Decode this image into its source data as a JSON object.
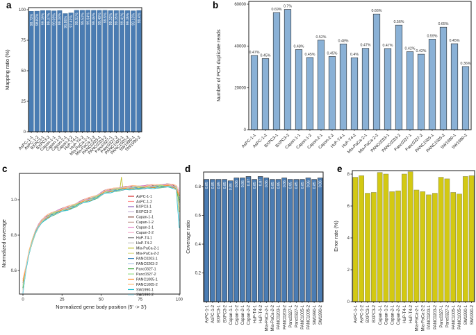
{
  "figure": {
    "background": "#ffffff"
  },
  "samples": [
    "AsPC-1-1",
    "AsPC-1-2",
    "BXPC3-1",
    "BXPC3-2",
    "Capan-1-1",
    "Capan-1-2",
    "Capan-2-1",
    "Capan-2-2",
    "HuP-T4-1",
    "HuP-T4-2",
    "Mia-PaCa-2-1",
    "Mia-PaCa-2-2",
    "PANC0203-1",
    "PANC0203-2",
    "Panc0327-1",
    "Panc0327-2",
    "PANC1005-1",
    "PANC1005-2",
    "SW1990-1",
    "SW1990-2"
  ],
  "colors": {
    "bar_blue": "#4a7cb3",
    "bar_light_blue": "#8ab1d6",
    "bar_yellow": "#d3c912",
    "frame": "#1a1a1a",
    "text": "#1f1f1f",
    "bar_label_white": "#ffffff"
  },
  "chart_data": [
    {
      "panel_label": "a",
      "type": "bar",
      "ylabel": "Mapping ratio (%)",
      "ylim": [
        0,
        100
      ],
      "yticks": [
        0,
        25,
        50,
        75,
        100
      ],
      "categories": [
        "AsPC-1-1",
        "AsPC-1-2",
        "BXPC3-1",
        "BXPC3-2",
        "Capan-1-1",
        "Capan-1-2",
        "Capan-2-1",
        "Capan-2-2",
        "HuP-T4-1",
        "HuP-T4-2",
        "Mia-PaCa-2-1",
        "Mia-PaCa-2-2",
        "PANC0203-1",
        "PANC0203-2",
        "Panc0327-1",
        "Panc0327-2",
        "PANC1005-1",
        "PANC1005-2",
        "SW1990-1",
        "SW1990-2"
      ],
      "values": [
        98.72,
        98.82,
        99.39,
        99.37,
        99.09,
        99.34,
        96.86,
        97.41,
        99.51,
        99.53,
        99.64,
        99.46,
        99.49,
        99.5,
        99.32,
        99.35,
        99.41,
        99.35,
        99.13,
        99.4
      ],
      "bar_labels": [
        "98.72%",
        "98.82%",
        "99.39%",
        "99.37%",
        "99.09%",
        "99.34%",
        "96.86%",
        "97.41%",
        "99.51%",
        "99.53%",
        "99.64%",
        "99.46%",
        "99.49%",
        "99.5%",
        "99.32%",
        "99.35%",
        "99.41%",
        "99.35%",
        "99.13%",
        "99.4%"
      ],
      "bar_color": "#4a7cb3",
      "bar_label_placement": "inside-top-rotated"
    },
    {
      "panel_label": "b",
      "type": "bar",
      "ylabel": "Number of PCR duplicate reads",
      "ylim": [
        0,
        60000
      ],
      "yticks": [
        0,
        20000,
        40000,
        60000
      ],
      "categories": [
        "AsPC-1-1",
        "AsPC-1-2",
        "BXPC3-1",
        "BXPC3-2",
        "Capan-1-1",
        "Capan-1-2",
        "Capan-2-1",
        "Capan-2-2",
        "HuP-T4-1",
        "HuP-T4-2",
        "Mia-PaCa-2-1",
        "Mia-PaCa-2-2",
        "PANC0203-1",
        "PANC0203-2",
        "Panc0327-1",
        "Panc0327-2",
        "PANC1005-1",
        "PANC1005-2",
        "SW1990-1",
        "SW1990-2"
      ],
      "values": [
        35500,
        34000,
        56000,
        57500,
        38300,
        34500,
        42800,
        35000,
        41000,
        34400,
        38900,
        55300,
        38800,
        50000,
        37300,
        36100,
        43300,
        49000,
        41100,
        30200
      ],
      "bar_labels": [
        "0.47%",
        "0.45%",
        "0.69%",
        "0.7%",
        "0.48%",
        "0.45%",
        "0.52%",
        "0.45%",
        "0.48%",
        "0.4%",
        "0.47%",
        "0.66%",
        "0.47%",
        "0.56%",
        "0.42%",
        "0.42%",
        "0.59%",
        "0.65%",
        "0.45%",
        "0.36%"
      ],
      "bar_color": "#8ab1d6",
      "bar_label_placement": "above"
    },
    {
      "panel_label": "c",
      "type": "line",
      "xlabel": "Normalized gene body position (5' -> 3')",
      "ylabel": "Normalized coverage",
      "xticks": [
        0,
        25,
        50,
        75,
        100
      ],
      "yticks": [
        0.6,
        0.8,
        1.0
      ],
      "xlim": [
        0,
        100
      ],
      "ylim": [
        0.467,
        1.149
      ],
      "legend_position": "inside-right",
      "x_points": [
        0,
        2,
        4,
        6,
        8,
        10,
        12,
        14,
        16,
        18,
        20,
        22,
        24,
        26,
        28,
        30,
        32,
        34,
        36,
        38,
        40,
        42,
        44,
        46,
        48,
        50,
        52,
        54,
        56,
        58,
        60,
        62,
        64,
        66,
        68,
        70,
        72,
        74,
        76,
        78,
        80,
        82,
        84,
        86,
        88,
        90,
        92,
        94,
        96,
        98,
        100
      ],
      "mean_curve": [
        0.5,
        0.615,
        0.705,
        0.768,
        0.818,
        0.852,
        0.875,
        0.893,
        0.905,
        0.915,
        0.924,
        0.931,
        0.938,
        0.944,
        0.95,
        0.955,
        0.962,
        0.97,
        0.98,
        0.988,
        0.994,
        1.0,
        1.005,
        1.012,
        1.02,
        1.032,
        1.042,
        1.048,
        1.05,
        1.054,
        1.058,
        1.06,
        1.063,
        1.064,
        1.066,
        1.068,
        1.068,
        1.069,
        1.07,
        1.07,
        1.073,
        1.074,
        1.074,
        1.075,
        1.078,
        1.078,
        1.079,
        1.078,
        1.075,
        1.068,
        1.02
      ],
      "series": [
        {
          "name": "AsPC-1-1",
          "color": "#d62728",
          "start": 0.5,
          "end": 1.02,
          "offset": 0.0
        },
        {
          "name": "AsPC-1-2",
          "color": "#ff9896",
          "start": 0.52,
          "end": 1.04,
          "offset": 0.004
        },
        {
          "name": "BXPC3-1",
          "color": "#9467bd",
          "start": 0.49,
          "end": 1.0,
          "offset": -0.003
        },
        {
          "name": "BXPC3-2",
          "color": "#c5b0d5",
          "start": 0.51,
          "end": 1.03,
          "offset": 0.005
        },
        {
          "name": "Capan-1-1",
          "color": "#8c564b",
          "start": 0.53,
          "end": 1.01,
          "offset": 0.007
        },
        {
          "name": "Capan-1-2",
          "color": "#c49c94",
          "start": 0.52,
          "end": 1.02,
          "offset": 0.002
        },
        {
          "name": "Capan-2-1",
          "color": "#e377c2",
          "start": 0.55,
          "end": 1.05,
          "offset": 0.006
        },
        {
          "name": "Capan-2-2",
          "color": "#f7b6d2",
          "start": 0.55,
          "end": 1.06,
          "offset": 0.009
        },
        {
          "name": "HuP-T4-1",
          "color": "#7f7f7f",
          "start": 0.5,
          "end": 0.98,
          "offset": -0.002
        },
        {
          "name": "HuP-T4-2",
          "color": "#c7c7c7",
          "start": 0.51,
          "end": 0.97,
          "offset": -0.005
        },
        {
          "name": "Mia-PaCa-2-1",
          "color": "#bcbd22",
          "start": 0.48,
          "end": 0.93,
          "offset": -0.001,
          "spike_x": 63,
          "spike_y": 1.128
        },
        {
          "name": "Mia-PaCa-2-2",
          "color": "#dbdb8d",
          "start": 0.49,
          "end": 0.95,
          "offset": 0.001
        },
        {
          "name": "PANC0203-1",
          "color": "#1f77b4",
          "start": 0.47,
          "end": 1.0,
          "offset": -0.004
        },
        {
          "name": "PANC0203-2",
          "color": "#aec7e8",
          "start": 0.48,
          "end": 1.01,
          "offset": 0.003
        },
        {
          "name": "Panc0327-1",
          "color": "#2ca02c",
          "start": 0.5,
          "end": 0.99,
          "offset": -0.006
        },
        {
          "name": "Panc0327-2",
          "color": "#98df8a",
          "start": 0.51,
          "end": 1.0,
          "offset": 0.0
        },
        {
          "name": "PANC1005-1",
          "color": "#ff7f0e",
          "start": 0.54,
          "end": 1.02,
          "offset": -0.003
        },
        {
          "name": "PANC1005-2",
          "color": "#ffbb78",
          "start": 0.55,
          "end": 1.03,
          "offset": 0.008
        },
        {
          "name": "SW1990-1",
          "color": "#17becf",
          "start": 0.47,
          "end": 0.84,
          "offset": -0.007
        },
        {
          "name": "SW1990-2",
          "color": "#9edae5",
          "start": 0.47,
          "end": 0.88,
          "offset": -0.004
        }
      ]
    },
    {
      "panel_label": "d",
      "type": "bar",
      "ylabel": "Coverage ratio",
      "ylim": [
        0,
        0.9
      ],
      "yticks": [
        0.2,
        0.4,
        0.6,
        0.8
      ],
      "categories": [
        "AsPC-1-1",
        "AsPC-1-2",
        "BXPC3-1",
        "BXPC3-2",
        "Capan-1-1",
        "Capan-1-2",
        "Capan-2-1",
        "Capan-2-2",
        "HuP-T4-1",
        "HuP-T4-2",
        "Mia-PaCa-2-1",
        "Mia-PaCa-2-2",
        "PANC0203-1",
        "PANC0203-2",
        "Panc0327-1",
        "Panc0327-2",
        "PANC1005-1",
        "PANC1005-2",
        "SW1990-1",
        "SW1990-2"
      ],
      "values": [
        0.85,
        0.85,
        0.85,
        0.85,
        0.84,
        0.86,
        0.86,
        0.87,
        0.85,
        0.87,
        0.86,
        0.85,
        0.85,
        0.86,
        0.85,
        0.85,
        0.85,
        0.86,
        0.85,
        0.86
      ],
      "bar_labels": [
        "0.85",
        "0.85",
        "0.85",
        "0.85",
        "0.84",
        "0.86",
        "0.86",
        "0.87",
        "0.85",
        "0.87",
        "0.86",
        "0.85",
        "0.85",
        "0.86",
        "0.85",
        "0.85",
        "0.85",
        "0.86",
        "0.85",
        "0.86"
      ],
      "bar_color": "#4a7cb3",
      "bar_label_placement": "inside-top-rotated"
    },
    {
      "panel_label": "e",
      "type": "bar",
      "ylabel": "Error rate (%)",
      "ylim": [
        0,
        8.7
      ],
      "yticks": [
        0,
        2,
        4,
        6,
        8
      ],
      "categories": [
        "AsPC-1-1",
        "AsPC-1-2",
        "BXPC3-1",
        "BXPC3-2",
        "Capan-1-1",
        "Capan-1-2",
        "Capan-2-1",
        "Capan-2-2",
        "HuP-T4-1",
        "HuP-T4-2",
        "Mia-PaCa-2-1",
        "Mia-PaCa-2-2",
        "PANC0203-1",
        "PANC0203-2",
        "Panc0327-1",
        "Panc0327-2",
        "PANC1005-1",
        "PANC1005-2",
        "SW1990-1",
        "SW1990-2"
      ],
      "values": [
        7.8,
        7.9,
        6.8,
        6.85,
        8.1,
        8.0,
        6.9,
        6.95,
        8.0,
        8.15,
        7.0,
        6.9,
        6.7,
        6.8,
        7.8,
        7.7,
        6.85,
        6.75,
        7.85,
        7.9
      ],
      "bar_labels": [],
      "bar_color": "#d3c912",
      "bar_label_placement": "none"
    }
  ]
}
